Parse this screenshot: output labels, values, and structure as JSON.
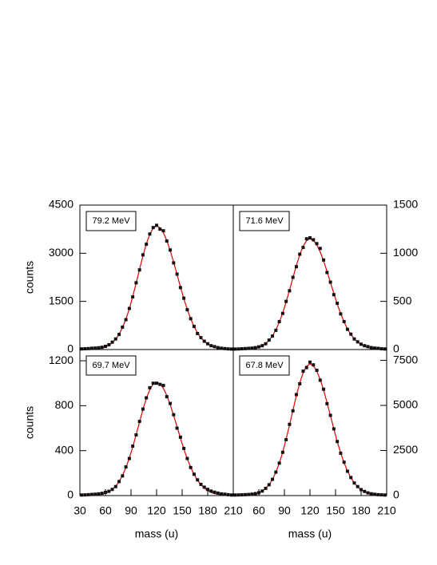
{
  "chart_data": [
    {
      "type": "scatter",
      "annotation": "79.2 MeV",
      "ylabel": "counts",
      "yaxis_side": "left",
      "x": [
        32,
        36,
        40,
        44,
        48,
        52,
        56,
        60,
        64,
        68,
        72,
        76,
        80,
        84,
        88,
        92,
        96,
        100,
        104,
        108,
        112,
        116,
        120,
        124,
        128,
        132,
        136,
        140,
        144,
        148,
        152,
        156,
        160,
        164,
        168,
        172,
        176,
        180,
        184,
        188,
        192,
        196,
        200,
        204,
        208
      ],
      "values": [
        20,
        25,
        30,
        40,
        45,
        55,
        70,
        100,
        150,
        230,
        330,
        470,
        700,
        930,
        1280,
        1640,
        2080,
        2480,
        2950,
        3280,
        3600,
        3800,
        3870,
        3750,
        3700,
        3380,
        3100,
        2700,
        2350,
        1930,
        1600,
        1240,
        960,
        720,
        500,
        370,
        260,
        180,
        120,
        90,
        60,
        40,
        30,
        20,
        15
      ],
      "fit": [
        1,
        2,
        4,
        7,
        14,
        26,
        46,
        79,
        129,
        207,
        318,
        474,
        683,
        948,
        1271,
        1648,
        2064,
        2499,
        2918,
        3296,
        3592,
        3785,
        3850,
        3796,
        3642,
        3396,
        3084,
        2722,
        2337,
        1948,
        1582,
        1251,
        959,
        716,
        520,
        368,
        253,
        169,
        110,
        70,
        43,
        26,
        15,
        8,
        5
      ],
      "color": "#111111",
      "fit_color": "#e00000",
      "xlim": [
        30,
        210
      ],
      "ylim": [
        0,
        4500
      ],
      "yticks": [
        0,
        1500,
        3000,
        4500
      ]
    },
    {
      "type": "scatter",
      "annotation": "71.6 MeV",
      "yaxis_side": "right",
      "x": [
        32,
        36,
        40,
        44,
        48,
        52,
        56,
        60,
        64,
        68,
        72,
        76,
        80,
        84,
        88,
        92,
        96,
        100,
        104,
        108,
        112,
        116,
        120,
        124,
        128,
        132,
        136,
        140,
        144,
        148,
        152,
        156,
        160,
        164,
        168,
        172,
        176,
        180,
        184,
        188,
        192,
        196,
        200,
        204,
        208
      ],
      "values": [
        5,
        6,
        8,
        10,
        12,
        15,
        20,
        28,
        40,
        60,
        98,
        140,
        200,
        290,
        375,
        500,
        610,
        750,
        860,
        990,
        1060,
        1150,
        1160,
        1140,
        1100,
        1050,
        930,
        800,
        700,
        570,
        480,
        370,
        290,
        210,
        160,
        110,
        80,
        55,
        40,
        30,
        20,
        15,
        12,
        8,
        6
      ],
      "fit": [
        0,
        1,
        1,
        2,
        4,
        8,
        14,
        24,
        39,
        62,
        95,
        142,
        204,
        283,
        380,
        492,
        616,
        746,
        872,
        984,
        1073,
        1130,
        1150,
        1134,
        1088,
        1014,
        921,
        813,
        698,
        582,
        473,
        374,
        286,
        214,
        155,
        110,
        76,
        50,
        33,
        21,
        13,
        8,
        4,
        3,
        1
      ],
      "color": "#111111",
      "fit_color": "#e00000",
      "xlim": [
        30,
        210
      ],
      "ylim": [
        0,
        1500
      ],
      "yticks": [
        0,
        500,
        1000,
        1500
      ]
    },
    {
      "type": "scatter",
      "annotation": "69.7 MeV",
      "ylabel": "counts",
      "xlabel": "mass (u)",
      "yaxis_side": "left",
      "x": [
        32,
        36,
        40,
        44,
        48,
        52,
        56,
        60,
        64,
        68,
        72,
        76,
        80,
        84,
        88,
        92,
        96,
        100,
        104,
        108,
        112,
        116,
        120,
        124,
        128,
        132,
        136,
        140,
        144,
        148,
        152,
        156,
        160,
        164,
        168,
        172,
        176,
        180,
        184,
        188,
        192,
        196,
        200,
        204,
        208
      ],
      "values": [
        5,
        6,
        8,
        10,
        12,
        15,
        20,
        28,
        38,
        55,
        80,
        125,
        175,
        255,
        330,
        440,
        540,
        660,
        770,
        870,
        960,
        1000,
        1000,
        990,
        980,
        880,
        820,
        720,
        600,
        520,
        420,
        330,
        250,
        190,
        140,
        100,
        75,
        55,
        40,
        30,
        22,
        15,
        12,
        8,
        5
      ],
      "fit": [
        0,
        0,
        1,
        2,
        4,
        7,
        12,
        21,
        34,
        54,
        84,
        124,
        179,
        249,
        333,
        432,
        541,
        655,
        766,
        865,
        942,
        993,
        1010,
        996,
        955,
        891,
        809,
        714,
        613,
        511,
        415,
        328,
        251,
        188,
        136,
        97,
        66,
        44,
        29,
        18,
        11,
        7,
        4,
        2,
        1
      ],
      "color": "#111111",
      "fit_color": "#e00000",
      "xlim": [
        30,
        210
      ],
      "xticks": [
        30,
        60,
        90,
        120,
        150,
        180,
        210
      ],
      "ylim": [
        0,
        1300
      ],
      "yticks": [
        0,
        400,
        800,
        1200
      ]
    },
    {
      "type": "scatter",
      "annotation": "67.8 MeV",
      "xlabel": "mass (u)",
      "yaxis_side": "right",
      "x": [
        32,
        36,
        40,
        44,
        48,
        52,
        56,
        60,
        64,
        68,
        72,
        76,
        80,
        84,
        88,
        92,
        96,
        100,
        104,
        108,
        112,
        116,
        120,
        124,
        128,
        132,
        136,
        140,
        144,
        148,
        152,
        156,
        160,
        164,
        168,
        172,
        176,
        180,
        184,
        188,
        192,
        196,
        200,
        204,
        208
      ],
      "values": [
        30,
        35,
        40,
        50,
        60,
        80,
        110,
        160,
        250,
        400,
        600,
        900,
        1300,
        1800,
        2400,
        3100,
        3950,
        4700,
        5600,
        6200,
        6900,
        7100,
        7400,
        7250,
        6950,
        6400,
        5900,
        5100,
        4450,
        3700,
        3000,
        2350,
        1850,
        1350,
        1000,
        700,
        500,
        330,
        230,
        150,
        100,
        70,
        50,
        40,
        30
      ],
      "fit": [
        2,
        4,
        7,
        14,
        27,
        49,
        87,
        149,
        245,
        392,
        604,
        899,
        1294,
        1797,
        2409,
        3124,
        3913,
        4738,
        5533,
        6249,
        6811,
        7176,
        7300,
        7198,
        6906,
        6439,
        5847,
        5161,
        4431,
        3694,
        3000,
        2373,
        1818,
        1358,
        986,
        698,
        480,
        320,
        209,
        132,
        81,
        48,
        28,
        16,
        9
      ],
      "color": "#111111",
      "fit_color": "#e00000",
      "xlim": [
        30,
        210
      ],
      "xticks": [
        60,
        90,
        120,
        150,
        180,
        210
      ],
      "ylim": [
        0,
        8100
      ],
      "yticks": [
        0,
        2500,
        5000,
        7500
      ]
    }
  ]
}
